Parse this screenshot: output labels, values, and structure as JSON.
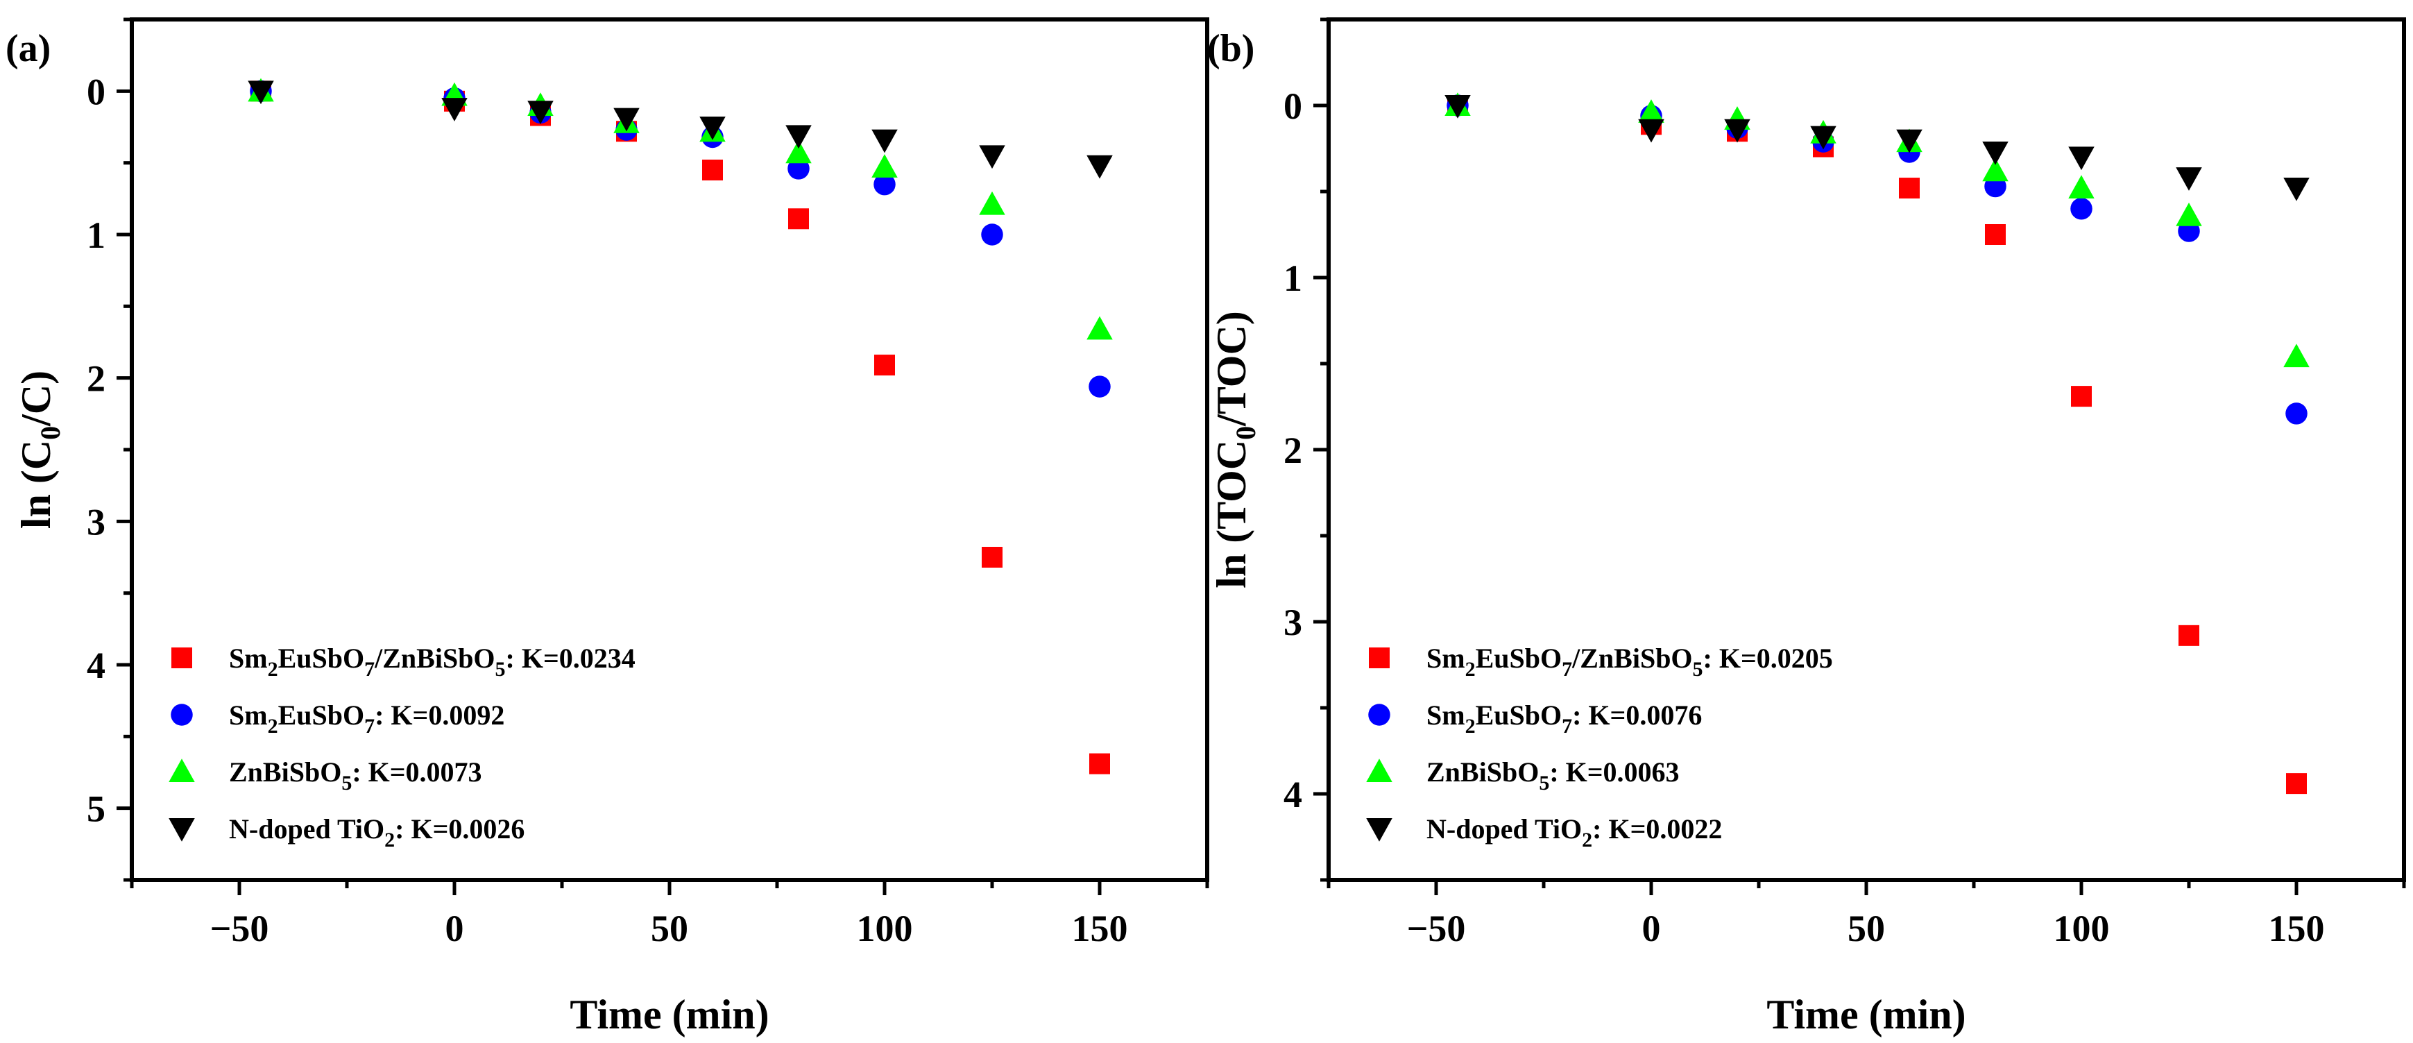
{
  "chart_data": [
    {
      "type": "scatter",
      "panel_label": "(a)",
      "xlabel": "Time (min)",
      "ylabel": {
        "pre": "ln (C",
        "sub": "0",
        "post": "/C)"
      },
      "xlim": [
        -75,
        175
      ],
      "ylim": [
        -0.5,
        5.5
      ],
      "y_inverted": true,
      "xticks": [
        -50,
        0,
        50,
        100,
        150
      ],
      "yticks": [
        0,
        1,
        2,
        3,
        4,
        5
      ],
      "x": [
        -45,
        0,
        20,
        40,
        60,
        80,
        100,
        125,
        150
      ],
      "series": [
        {
          "name": "Sm2EuSbO7/ZnBiSbO5: K=0.0234",
          "marker": "square",
          "color": "#ff0000",
          "label_parts": [
            [
              "Sm",
              0
            ],
            [
              "2",
              1
            ],
            [
              "EuSbO",
              0
            ],
            [
              "7",
              1
            ],
            [
              "/ZnBiSbO",
              0
            ],
            [
              "5",
              1
            ],
            [
              ": K=0.0234",
              0
            ]
          ],
          "values": [
            0.0,
            0.07,
            0.17,
            0.28,
            0.55,
            0.89,
            1.91,
            3.25,
            4.69
          ]
        },
        {
          "name": "Sm2EuSbO7: K=0.0092",
          "marker": "circle",
          "color": "#0000ff",
          "label_parts": [
            [
              "Sm",
              0
            ],
            [
              "2",
              1
            ],
            [
              "EuSbO",
              0
            ],
            [
              "7",
              1
            ],
            [
              ": K=0.0092",
              0
            ]
          ],
          "values": [
            0.0,
            0.05,
            0.15,
            0.27,
            0.32,
            0.54,
            0.65,
            1.0,
            2.06
          ]
        },
        {
          "name": "ZnBiSbO5: K=0.0073",
          "marker": "triangle-up",
          "color": "#00ff00",
          "label_parts": [
            [
              "ZnBiSbO",
              0
            ],
            [
              "5",
              1
            ],
            [
              ": K=0.0073",
              0
            ]
          ],
          "values": [
            0.0,
            0.03,
            0.1,
            0.22,
            0.28,
            0.43,
            0.53,
            0.79,
            1.66
          ]
        },
        {
          "name": "N-doped TiO2: K=0.0026",
          "marker": "triangle-down",
          "color": "#000000",
          "label_parts": [
            [
              "N-doped TiO",
              0
            ],
            [
              "2",
              1
            ],
            [
              ": K=0.0026",
              0
            ]
          ],
          "values": [
            0.0,
            0.12,
            0.14,
            0.19,
            0.25,
            0.31,
            0.34,
            0.45,
            0.52
          ]
        }
      ],
      "legend_position": "bottom-left"
    },
    {
      "type": "scatter",
      "panel_label": "(b)",
      "xlabel": "Time (min)",
      "ylabel": {
        "pre": "ln (TOC",
        "sub": "0",
        "post": "/TOC)"
      },
      "xlim": [
        -75,
        175
      ],
      "ylim": [
        -0.5,
        4.5
      ],
      "y_inverted": true,
      "xticks": [
        -50,
        0,
        50,
        100,
        150
      ],
      "yticks": [
        0,
        1,
        2,
        3,
        4
      ],
      "x": [
        -45,
        0,
        20,
        40,
        60,
        80,
        100,
        125,
        150
      ],
      "series": [
        {
          "name": "Sm2EuSbO7/ZnBiSbO5: K=0.0205",
          "marker": "square",
          "color": "#ff0000",
          "label_parts": [
            [
              "Sm",
              0
            ],
            [
              "2",
              1
            ],
            [
              "EuSbO",
              0
            ],
            [
              "7",
              1
            ],
            [
              "/ZnBiSbO",
              0
            ],
            [
              "5",
              1
            ],
            [
              ": K=0.0205",
              0
            ]
          ],
          "values": [
            0.0,
            0.11,
            0.15,
            0.24,
            0.48,
            0.75,
            1.69,
            3.08,
            3.94
          ]
        },
        {
          "name": "Sm2EuSbO7: K=0.0076",
          "marker": "circle",
          "color": "#0000ff",
          "label_parts": [
            [
              "Sm",
              0
            ],
            [
              "2",
              1
            ],
            [
              "EuSbO",
              0
            ],
            [
              "7",
              1
            ],
            [
              ": K=0.0076",
              0
            ]
          ],
          "values": [
            0.0,
            0.06,
            0.13,
            0.21,
            0.27,
            0.47,
            0.6,
            0.73,
            1.79
          ]
        },
        {
          "name": "ZnBiSbO5: K=0.0063",
          "marker": "triangle-up",
          "color": "#00ff00",
          "label_parts": [
            [
              "ZnBiSbO",
              0
            ],
            [
              "5",
              1
            ],
            [
              ": K=0.0063",
              0
            ]
          ],
          "values": [
            0.0,
            0.04,
            0.08,
            0.16,
            0.21,
            0.38,
            0.48,
            0.64,
            1.46
          ]
        },
        {
          "name": "N-doped TiO2: K=0.0022",
          "marker": "triangle-down",
          "color": "#000000",
          "label_parts": [
            [
              "N-doped TiO",
              0
            ],
            [
              "2",
              1
            ],
            [
              ": K=0.0022",
              0
            ]
          ],
          "values": [
            0.0,
            0.14,
            0.14,
            0.18,
            0.2,
            0.27,
            0.3,
            0.42,
            0.48
          ]
        }
      ],
      "legend_position": "bottom-left"
    }
  ]
}
